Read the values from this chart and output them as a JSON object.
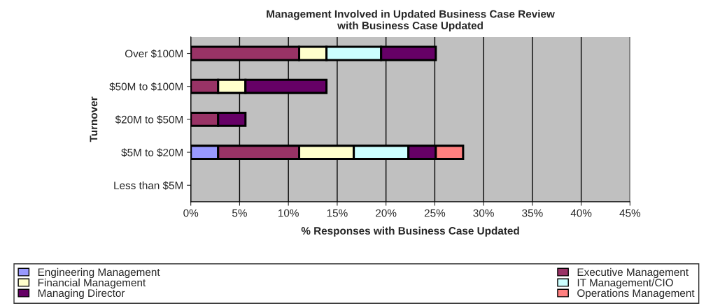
{
  "chart_data": {
    "type": "bar",
    "orientation": "horizontal",
    "stacked": true,
    "title": "Management Involved in Updated Business Case Review\nwith Business Case Updated",
    "xlabel": "% Responses with Business Case Updated",
    "ylabel": "Turnover",
    "categories": [
      "Over $100M",
      "$50M to $100M",
      "$20M to $50M",
      "$5M to $20M",
      "Less than $5M"
    ],
    "series": [
      {
        "name": "Engineering Management",
        "color": "#9999ff",
        "values": [
          null,
          null,
          null,
          2.8,
          null
        ]
      },
      {
        "name": "Executive Management",
        "color": "#993366",
        "values": [
          11.1,
          2.8,
          2.8,
          8.3,
          null
        ]
      },
      {
        "name": "Financial Management",
        "color": "#ffffcc",
        "values": [
          2.8,
          2.8,
          null,
          5.6,
          null
        ]
      },
      {
        "name": "IT Management/CIO",
        "color": "#ccffff",
        "values": [
          5.6,
          null,
          null,
          5.6,
          null
        ]
      },
      {
        "name": "Managing Director",
        "color": "#660066",
        "values": [
          5.6,
          8.3,
          2.8,
          2.8,
          null
        ]
      },
      {
        "name": "Operations Management",
        "color": "#ff8080",
        "values": [
          null,
          null,
          null,
          2.8,
          null
        ]
      }
    ],
    "xlim": [
      0,
      45
    ],
    "xticks": [
      {
        "value": 0,
        "label": "0%"
      },
      {
        "value": 5,
        "label": "5%"
      },
      {
        "value": 10,
        "label": "10%"
      },
      {
        "value": 15,
        "label": "15%"
      },
      {
        "value": 20,
        "label": "20%"
      },
      {
        "value": 25,
        "label": "25%"
      },
      {
        "value": 30,
        "label": "30%"
      },
      {
        "value": 35,
        "label": "35%"
      },
      {
        "value": 40,
        "label": "40%"
      },
      {
        "value": 45,
        "label": "45%"
      }
    ],
    "grid": "x",
    "legend": "bottom"
  }
}
